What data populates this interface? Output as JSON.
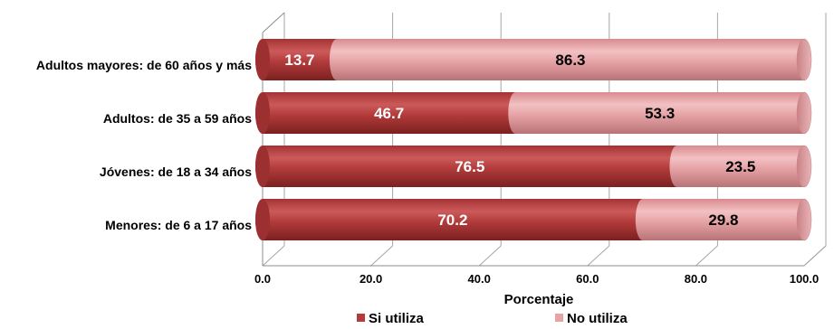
{
  "chart_data": {
    "type": "bar",
    "orientation": "horizontal",
    "stacked": true,
    "style": "3d-cylinder",
    "categories": [
      "Adultos mayores: de 60 años y más",
      "Adultos: de 35 a 59 años",
      "Jóvenes: de 18 a 34 años",
      "Menores: de 6 a 17 años"
    ],
    "series": [
      {
        "name": "Si utiliza",
        "values": [
          13.7,
          46.7,
          76.5,
          70.2
        ],
        "color": "#b23b3b",
        "label_color": "#ffffff"
      },
      {
        "name": "No utiliza",
        "values": [
          86.3,
          53.3,
          23.5,
          29.8
        ],
        "color": "#e6a3a6",
        "label_color": "#000000"
      }
    ],
    "data_labels": [
      [
        "13.7",
        "46.7",
        "76.5",
        "70.2"
      ],
      [
        "86.3",
        "53.3",
        "23.5",
        "29.8"
      ]
    ],
    "xlabel": "Porcentaje",
    "xlim": [
      0,
      100
    ],
    "xticks": [
      0,
      20,
      40,
      60,
      80,
      100
    ],
    "xtick_labels": [
      "0.0",
      "20.0",
      "40.0",
      "60.0",
      "80.0",
      "100.0"
    ],
    "grid": true,
    "legend": {
      "position": "bottom",
      "entries": [
        "Si utiliza",
        "No utiliza"
      ]
    }
  }
}
